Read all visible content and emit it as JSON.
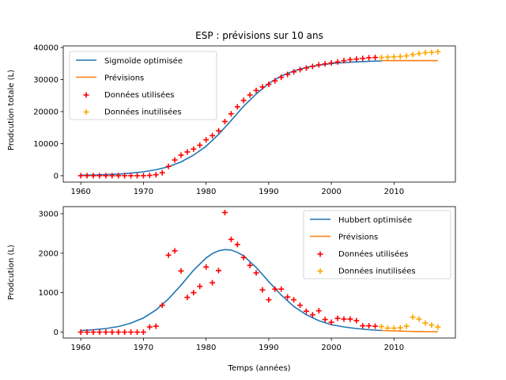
{
  "chart_data": [
    {
      "type": "scatter",
      "title": "ESP : prévisions sur 10 ans",
      "xlabel": "",
      "ylabel": "Prodcution totale (L)",
      "xlim": [
        1957.2,
        2019.8
      ],
      "ylim": [
        -2000,
        40500
      ],
      "xticks": [
        1960,
        1970,
        1980,
        1990,
        2000,
        2010
      ],
      "xtick_labels": [
        "1960",
        "1970",
        "1980",
        "1990",
        "2000",
        "2010"
      ],
      "yticks": [
        0,
        10000,
        20000,
        30000,
        40000
      ],
      "ytick_labels": [
        "0",
        "10000",
        "20000",
        "30000",
        "40000"
      ],
      "legend": "top-left",
      "colors": {
        "fit": "#1f77b4",
        "forecast": "#ff7f0e",
        "used": "#ff0000",
        "unused": "#ffa500"
      },
      "fit": {
        "name": "Sigmoïde optimisée",
        "x": [
          1960,
          1962,
          1964,
          1966,
          1968,
          1970,
          1972,
          1974,
          1976,
          1978,
          1980,
          1982,
          1984,
          1986,
          1988,
          1990,
          1992,
          1994,
          1996,
          1998,
          2000,
          2002,
          2004,
          2006,
          2008
        ],
        "y": [
          140,
          210,
          330,
          500,
          780,
          1200,
          1850,
          2800,
          4300,
          6400,
          9200,
          12900,
          17200,
          21700,
          25500,
          28800,
          31100,
          32700,
          33800,
          34500,
          35000,
          35300,
          35500,
          35700,
          35800
        ]
      },
      "forecast": {
        "name": "Prévisions",
        "x": [
          2008,
          2017
        ],
        "y": [
          35900,
          35900
        ]
      },
      "used": {
        "name": "Données utilisées",
        "x": [
          1960,
          1961,
          1962,
          1963,
          1964,
          1965,
          1966,
          1967,
          1968,
          1969,
          1970,
          1971,
          1972,
          1973,
          1974,
          1975,
          1976,
          1977,
          1978,
          1979,
          1980,
          1981,
          1982,
          1983,
          1984,
          1985,
          1986,
          1987,
          1988,
          1989,
          1990,
          1991,
          1992,
          1993,
          1994,
          1995,
          1996,
          1997,
          1998,
          1999,
          2000,
          2001,
          2002,
          2003,
          2004,
          2005,
          2006,
          2007
        ],
        "y": [
          0,
          0,
          0,
          0,
          0,
          0,
          0,
          0,
          0,
          0,
          0,
          100,
          300,
          900,
          2900,
          4900,
          6400,
          7400,
          8300,
          9500,
          11200,
          12500,
          14000,
          16900,
          19300,
          21500,
          23500,
          25200,
          26600,
          27700,
          28500,
          29600,
          30700,
          31600,
          32400,
          33100,
          33600,
          34100,
          34600,
          34900,
          35200,
          35500,
          35900,
          36200,
          36400,
          36600,
          36800,
          36900
        ]
      },
      "unused": {
        "name": "Données inutilisées",
        "x": [
          2008,
          2009,
          2010,
          2011,
          2012,
          2013,
          2014,
          2015,
          2016,
          2017
        ],
        "y": [
          36900,
          37000,
          37100,
          37200,
          37400,
          37800,
          38100,
          38400,
          38500,
          38700
        ]
      }
    },
    {
      "type": "scatter",
      "title": "",
      "xlabel": "Temps (années)",
      "ylabel": "Prodcution (L)",
      "xlim": [
        1957.2,
        2019.8
      ],
      "ylim": [
        -150,
        3180
      ],
      "xticks": [
        1960,
        1970,
        1980,
        1990,
        2000,
        2010
      ],
      "xtick_labels": [
        "1960",
        "1970",
        "1980",
        "1990",
        "2000",
        "2010"
      ],
      "yticks": [
        0,
        1000,
        2000,
        3000
      ],
      "ytick_labels": [
        "0",
        "1000",
        "2000",
        "3000"
      ],
      "legend": "top-right",
      "colors": {
        "fit": "#1f77b4",
        "forecast": "#ff7f0e",
        "used": "#ff0000",
        "unused": "#ffa500"
      },
      "fit": {
        "name": "Hubbert optimisée",
        "x": [
          1960,
          1962,
          1964,
          1966,
          1968,
          1970,
          1972,
          1974,
          1976,
          1978,
          1980,
          1981,
          1982,
          1983,
          1984,
          1985,
          1986,
          1988,
          1990,
          1992,
          1994,
          1996,
          1998,
          2000,
          2002,
          2004,
          2006,
          2008
        ],
        "y": [
          40,
          60,
          90,
          140,
          230,
          360,
          560,
          840,
          1190,
          1570,
          1880,
          1990,
          2060,
          2090,
          2080,
          2020,
          1930,
          1640,
          1280,
          940,
          650,
          440,
          290,
          190,
          130,
          90,
          60,
          40
        ]
      },
      "forecast": {
        "name": "Prévisions",
        "x": [
          2008,
          2010,
          2012,
          2014,
          2016,
          2017
        ],
        "y": [
          40,
          30,
          20,
          15,
          10,
          8
        ]
      },
      "used": {
        "name": "Données utilisées",
        "x": [
          1960,
          1961,
          1962,
          1963,
          1964,
          1965,
          1966,
          1967,
          1968,
          1969,
          1970,
          1971,
          1972,
          1973,
          1974,
          1975,
          1976,
          1977,
          1978,
          1979,
          1980,
          1981,
          1982,
          1983,
          1984,
          1985,
          1986,
          1987,
          1988,
          1989,
          1990,
          1991,
          1992,
          1993,
          1994,
          1995,
          1996,
          1997,
          1998,
          1999,
          2000,
          2001,
          2002,
          2003,
          2004,
          2005,
          2006,
          2007
        ],
        "y": [
          0,
          0,
          0,
          0,
          0,
          0,
          0,
          0,
          0,
          0,
          0,
          130,
          150,
          680,
          1950,
          2060,
          1550,
          880,
          1000,
          1160,
          1650,
          1250,
          1560,
          3030,
          2350,
          2220,
          1890,
          1690,
          1500,
          1070,
          820,
          1090,
          1090,
          890,
          820,
          680,
          530,
          440,
          540,
          320,
          250,
          350,
          330,
          330,
          290,
          160,
          160,
          150
        ]
      },
      "unused": {
        "name": "Données inutilisées",
        "x": [
          2008,
          2009,
          2010,
          2011,
          2012,
          2013,
          2014,
          2015,
          2016,
          2017
        ],
        "y": [
          140,
          100,
          100,
          110,
          150,
          380,
          330,
          230,
          180,
          130
        ]
      }
    }
  ]
}
